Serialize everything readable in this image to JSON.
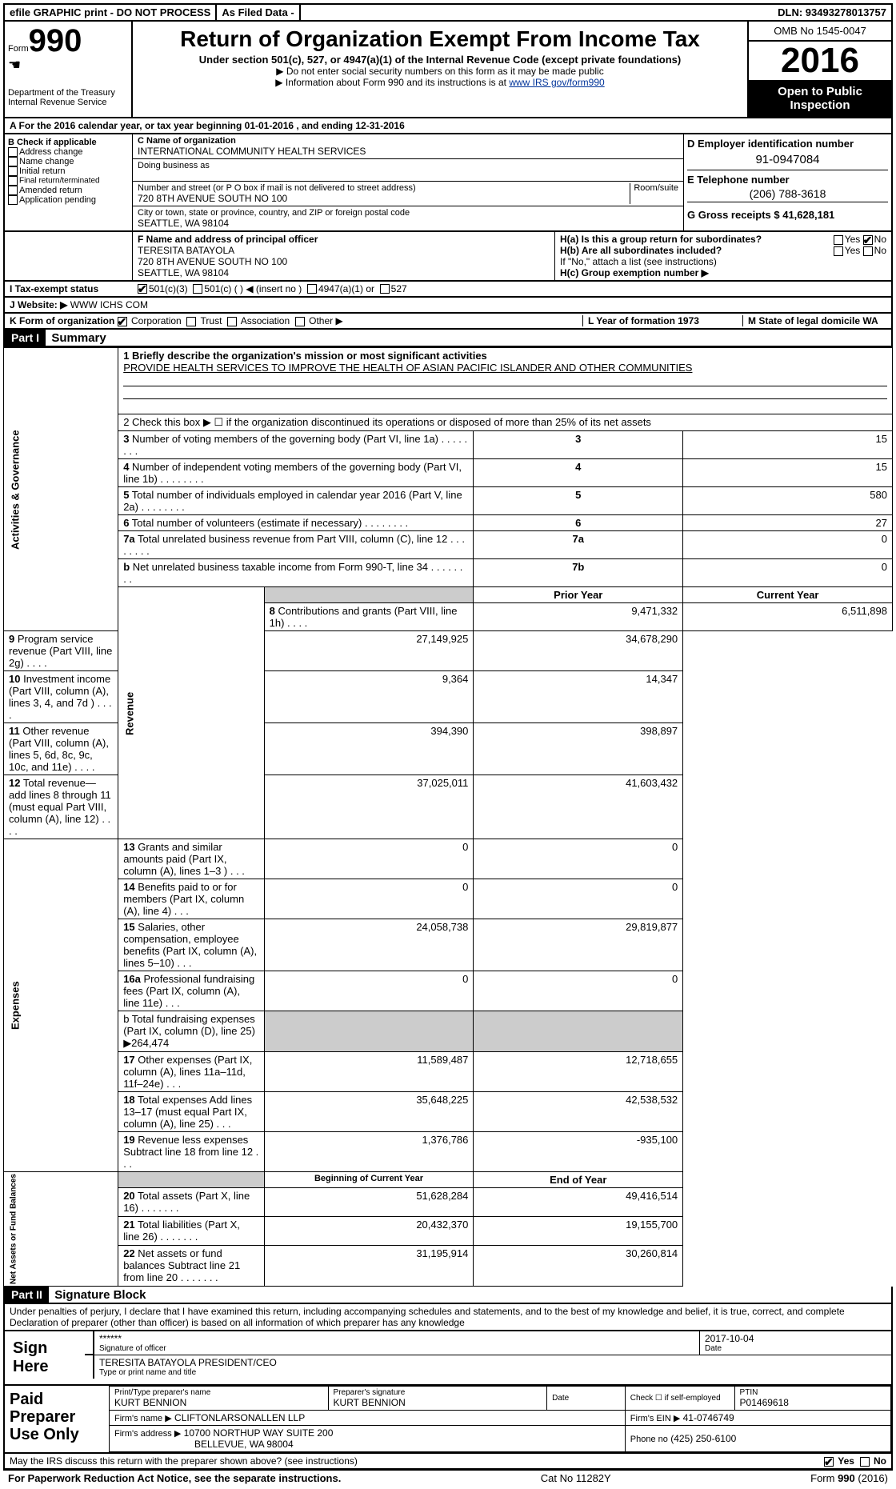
{
  "top": {
    "efile": "efile GRAPHIC print - DO NOT PROCESS",
    "asfiled": "As Filed Data -",
    "dln": "DLN: 93493278013757"
  },
  "header": {
    "form_label": "Form",
    "form_num": "990",
    "dept": "Department of the Treasury",
    "irs": "Internal Revenue Service",
    "title": "Return of Organization Exempt From Income Tax",
    "sub": "Under section 501(c), 527, or 4947(a)(1) of the Internal Revenue Code (except private foundations)",
    "note1": "▶ Do not enter social security numbers on this form as it may be made public",
    "note2": "▶ Information about Form 990 and its instructions is at ",
    "irs_link": "www IRS gov/form990",
    "omb": "OMB No 1545-0047",
    "year": "2016",
    "otp": "Open to Public Inspection"
  },
  "lineA": "A  For the 2016 calendar year, or tax year beginning 01-01-2016  , and ending 12-31-2016",
  "B": {
    "title": "B Check if applicable",
    "items": [
      "Address change",
      "Name change",
      "Initial return",
      "Final return/terminated",
      "Amended return",
      "Application pending"
    ]
  },
  "C": {
    "name_label": "C Name of organization",
    "name": "INTERNATIONAL COMMUNITY HEALTH SERVICES",
    "dba_label": "Doing business as",
    "addr_label": "Number and street (or P O  box if mail is not delivered to street address)",
    "room_label": "Room/suite",
    "addr": "720 8TH AVENUE SOUTH NO 100",
    "city_label": "City or town, state or province, country, and ZIP or foreign postal code",
    "city": "SEATTLE, WA  98104"
  },
  "D": {
    "label": "D Employer identification number",
    "val": "91-0947084"
  },
  "E": {
    "label": "E Telephone number",
    "val": "(206) 788-3618"
  },
  "G": {
    "label": "G Gross receipts $ 41,628,181"
  },
  "F": {
    "label": "F  Name and address of principal officer",
    "name": "TERESITA BATAYOLA",
    "addr1": "720 8TH AVENUE SOUTH NO 100",
    "addr2": "SEATTLE, WA  98104"
  },
  "H": {
    "a": "H(a)  Is this a group return for subordinates?",
    "b": "H(b)  Are all subordinates included?",
    "ifno": "If \"No,\" attach a list  (see instructions)",
    "c": "H(c)  Group exemption number ▶"
  },
  "I": {
    "label": "I  Tax-exempt status",
    "opts": [
      "501(c)(3)",
      "501(c) (  ) ◀ (insert no )",
      "4947(a)(1) or",
      "527"
    ]
  },
  "J": {
    "label": "J  Website: ▶",
    "val": "WWW ICHS COM"
  },
  "K": {
    "label": "K Form of organization",
    "opts": [
      "Corporation",
      "Trust",
      "Association",
      "Other ▶"
    ]
  },
  "L": {
    "label": "L Year of formation  1973"
  },
  "M": {
    "label": "M State of legal domicile WA"
  },
  "partI": {
    "num": "Part I",
    "title": "Summary"
  },
  "mission": {
    "label": "1 Briefly describe the organization's mission or most significant activities",
    "text": "PROVIDE HEALTH SERVICES TO IMPROVE THE HEALTH OF ASIAN PACIFIC ISLANDER AND OTHER COMMUNITIES"
  },
  "line2": "2  Check this box ▶ ☐  if the organization discontinued its operations or disposed of more than 25% of its net assets",
  "gov_rows": [
    {
      "n": "3",
      "t": "Number of voting members of the governing body (Part VI, line 1a)",
      "box": "3",
      "v": "15"
    },
    {
      "n": "4",
      "t": "Number of independent voting members of the governing body (Part VI, line 1b)",
      "box": "4",
      "v": "15"
    },
    {
      "n": "5",
      "t": "Total number of individuals employed in calendar year 2016 (Part V, line 2a)",
      "box": "5",
      "v": "580"
    },
    {
      "n": "6",
      "t": "Total number of volunteers (estimate if necessary)",
      "box": "6",
      "v": "27"
    },
    {
      "n": "7a",
      "t": "Total unrelated business revenue from Part VIII, column (C), line 12",
      "box": "7a",
      "v": "0"
    },
    {
      "n": "b",
      "t": "Net unrelated business taxable income from Form 990-T, line 34",
      "box": "7b",
      "v": "0"
    }
  ],
  "col_hdrs": {
    "prior": "Prior Year",
    "current": "Current Year"
  },
  "rev_rows": [
    {
      "n": "8",
      "t": "Contributions and grants (Part VIII, line 1h)",
      "p": "9,471,332",
      "c": "6,511,898"
    },
    {
      "n": "9",
      "t": "Program service revenue (Part VIII, line 2g)",
      "p": "27,149,925",
      "c": "34,678,290"
    },
    {
      "n": "10",
      "t": "Investment income (Part VIII, column (A), lines 3, 4, and 7d )",
      "p": "9,364",
      "c": "14,347"
    },
    {
      "n": "11",
      "t": "Other revenue (Part VIII, column (A), lines 5, 6d, 8c, 9c, 10c, and 11e)",
      "p": "394,390",
      "c": "398,897"
    },
    {
      "n": "12",
      "t": "Total revenue—add lines 8 through 11 (must equal Part VIII, column (A), line 12)",
      "p": "37,025,011",
      "c": "41,603,432"
    }
  ],
  "exp_rows": [
    {
      "n": "13",
      "t": "Grants and similar amounts paid (Part IX, column (A), lines 1–3 )",
      "p": "0",
      "c": "0"
    },
    {
      "n": "14",
      "t": "Benefits paid to or for members (Part IX, column (A), line 4)",
      "p": "0",
      "c": "0"
    },
    {
      "n": "15",
      "t": "Salaries, other compensation, employee benefits (Part IX, column (A), lines 5–10)",
      "p": "24,058,738",
      "c": "29,819,877"
    },
    {
      "n": "16a",
      "t": "Professional fundraising fees (Part IX, column (A), line 11e)",
      "p": "0",
      "c": "0"
    }
  ],
  "line16b": "b  Total fundraising expenses (Part IX, column (D), line 25) ▶264,474",
  "exp_rows2": [
    {
      "n": "17",
      "t": "Other expenses (Part IX, column (A), lines 11a–11d, 11f–24e)",
      "p": "11,589,487",
      "c": "12,718,655"
    },
    {
      "n": "18",
      "t": "Total expenses  Add lines 13–17 (must equal Part IX, column (A), line 25)",
      "p": "35,648,225",
      "c": "42,538,532"
    },
    {
      "n": "19",
      "t": "Revenue less expenses  Subtract line 18 from line 12",
      "p": "1,376,786",
      "c": "-935,100"
    }
  ],
  "net_hdrs": {
    "beg": "Beginning of Current Year",
    "end": "End of Year"
  },
  "net_rows": [
    {
      "n": "20",
      "t": "Total assets (Part X, line 16)",
      "p": "51,628,284",
      "c": "49,416,514"
    },
    {
      "n": "21",
      "t": "Total liabilities (Part X, line 26)",
      "p": "20,432,370",
      "c": "19,155,700"
    },
    {
      "n": "22",
      "t": "Net assets or fund balances  Subtract line 21 from line 20",
      "p": "31,195,914",
      "c": "30,260,814"
    }
  ],
  "partII": {
    "num": "Part II",
    "title": "Signature Block"
  },
  "perjury": "Under penalties of perjury, I declare that I have examined this return, including accompanying schedules and statements, and to the best of my knowledge and belief, it is true, correct, and complete  Declaration of preparer (other than officer) is based on all information of which preparer has any knowledge",
  "sign": {
    "here": "Sign Here",
    "stars": "******",
    "sig_label": "Signature of officer",
    "date": "2017-10-04",
    "date_label": "Date",
    "name": "TERESITA BATAYOLA  PRESIDENT/CEO",
    "name_label": "Type or print name and title"
  },
  "paid": {
    "title": "Paid Preparer Use Only",
    "prep_name_label": "Print/Type preparer's name",
    "prep_name": "KURT BENNION",
    "prep_sig_label": "Preparer's signature",
    "prep_sig": "KURT BENNION",
    "date_label": "Date",
    "check_label": "Check ☐ if self-employed",
    "ptin_label": "PTIN",
    "ptin": "P01469618",
    "firm_name_label": "Firm's name   ▶",
    "firm_name": "CLIFTONLARSONALLEN LLP",
    "firm_ein_label": "Firm's EIN ▶",
    "firm_ein": "41-0746749",
    "firm_addr_label": "Firm's address ▶",
    "firm_addr1": "10700 NORTHUP WAY SUITE 200",
    "firm_addr2": "BELLEVUE, WA  98004",
    "phone_label": "Phone no",
    "phone": "(425) 250-6100"
  },
  "discuss": "May the IRS discuss this return with the preparer shown above? (see instructions)",
  "footer": {
    "pra": "For Paperwork Reduction Act Notice, see the separate instructions.",
    "cat": "Cat  No  11282Y",
    "form": "Form 990 (2016)"
  },
  "side_labels": {
    "gov": "Activities & Governance",
    "rev": "Revenue",
    "exp": "Expenses",
    "net": "Net Assets or Fund Balances"
  },
  "yes": "Yes",
  "no": "No"
}
